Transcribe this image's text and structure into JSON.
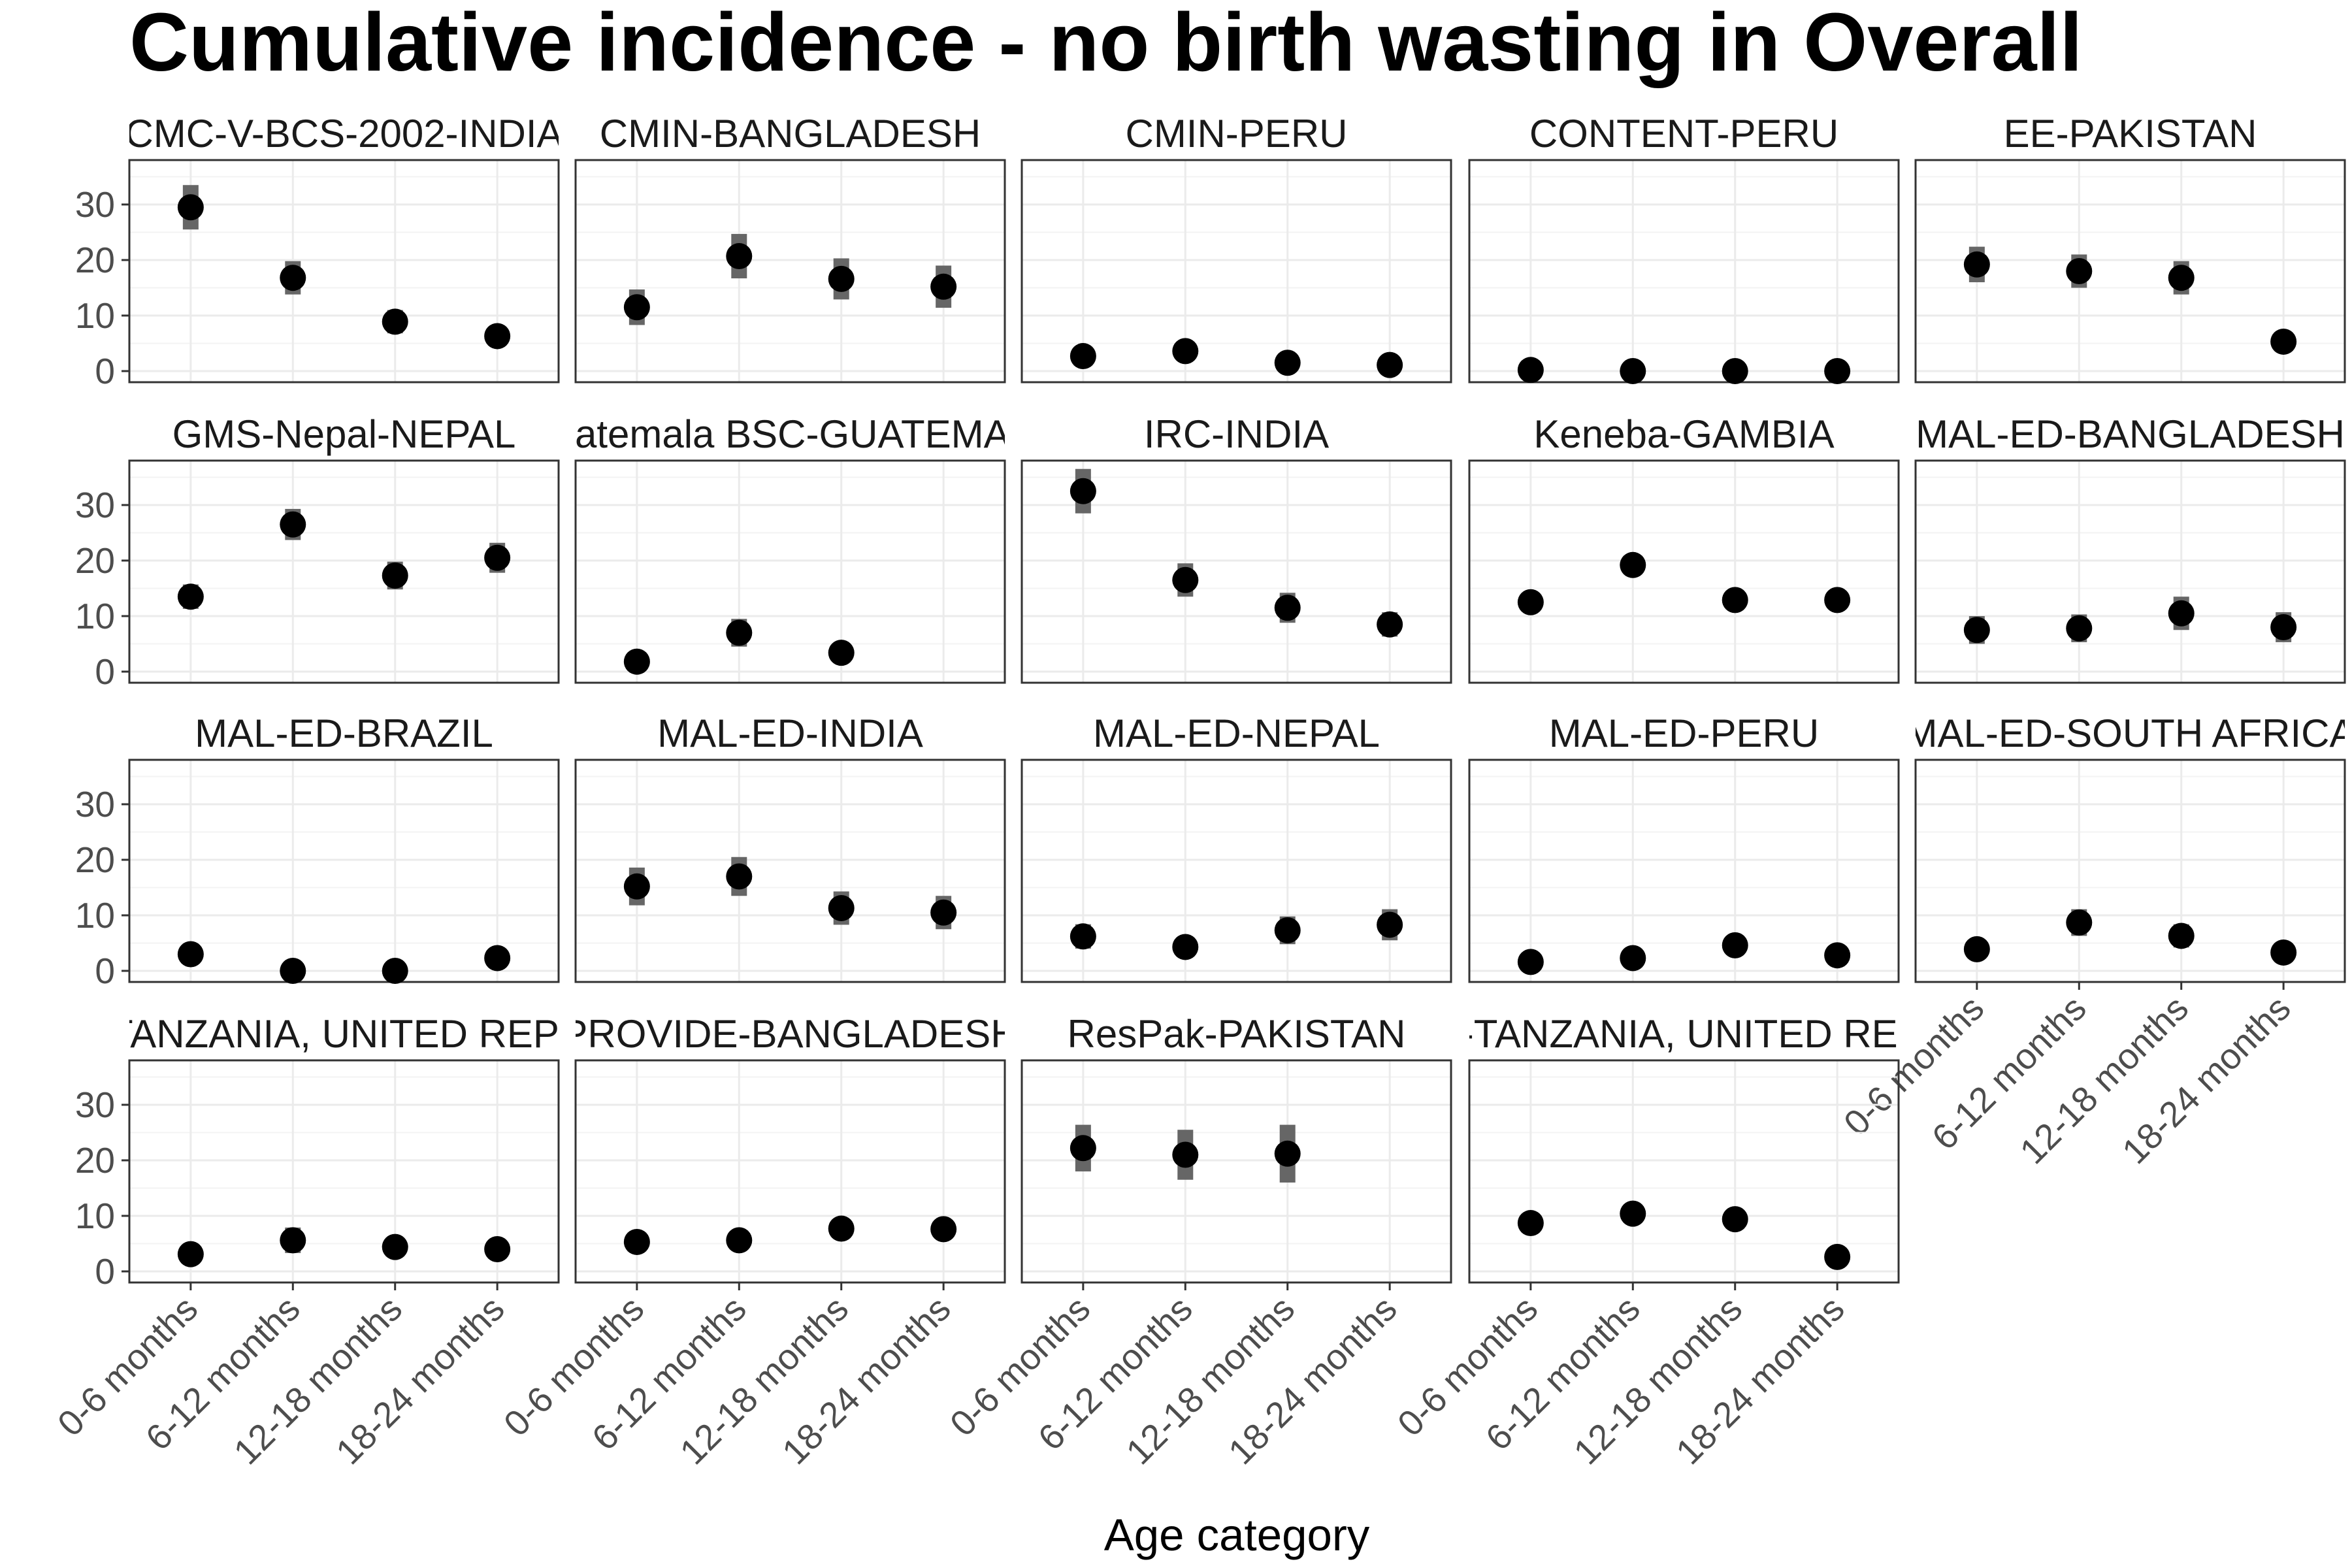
{
  "chart_data": {
    "type": "scatter",
    "title": "Cumulative incidence - no birth wasting in Overall",
    "xlabel": "Age category",
    "ylabel": "",
    "ylim": [
      -2,
      38
    ],
    "yticks": [
      "0",
      "10",
      "20",
      "30"
    ],
    "categories": [
      "0-6 months",
      "6-12 months",
      "12-18 months",
      "18-24 months"
    ],
    "grid": true,
    "facet_layout": {
      "rows": 4,
      "cols": 5
    },
    "colors": {
      "point": "#000000",
      "errorbar": "#666666",
      "grid": "#ebebeb",
      "panel_border": "#333333"
    },
    "panels": [
      {
        "label": "CMC-V-BCS-2002-INDIA",
        "values": [
          29.5,
          16.8,
          8.9,
          6.3
        ],
        "lower": [
          25.5,
          13.8,
          6.8,
          4.8
        ],
        "upper": [
          33.5,
          19.8,
          11.0,
          7.8
        ]
      },
      {
        "label": "CMIN-BANGLADESH",
        "values": [
          11.5,
          20.7,
          16.6,
          15.2
        ],
        "lower": [
          8.3,
          16.7,
          12.9,
          11.4
        ],
        "upper": [
          14.7,
          24.7,
          20.3,
          19.0
        ]
      },
      {
        "label": "CMIN-PERU",
        "values": [
          2.7,
          3.6,
          1.5,
          1.1
        ],
        "lower": [
          1.7,
          2.4,
          0.8,
          0.4
        ],
        "upper": [
          3.7,
          4.8,
          2.2,
          1.8
        ]
      },
      {
        "label": "CONTENT-PERU",
        "values": [
          0.2,
          0.0,
          0.0,
          0.0
        ],
        "lower": [
          0.0,
          0.0,
          0.0,
          0.0
        ],
        "upper": [
          1.2,
          0.5,
          0.5,
          0.5
        ]
      },
      {
        "label": "EE-PAKISTAN",
        "values": [
          19.2,
          18.0,
          16.8,
          5.3
        ],
        "lower": [
          16.0,
          15.0,
          13.8,
          4.0
        ],
        "upper": [
          22.4,
          21.0,
          19.8,
          6.6
        ]
      },
      {
        "label": "GMS-Nepal-NEPAL",
        "values": [
          13.5,
          26.5,
          17.3,
          20.5
        ],
        "lower": [
          11.3,
          23.7,
          14.8,
          17.8
        ],
        "upper": [
          15.7,
          29.3,
          19.8,
          23.2
        ]
      },
      {
        "label": "Guatemala BSC-GUATEMALA",
        "values": [
          1.8,
          7.0,
          3.4,
          null
        ],
        "lower": [
          1.0,
          4.5,
          1.9,
          null
        ],
        "upper": [
          2.6,
          9.5,
          4.9,
          null
        ]
      },
      {
        "label": "IRC-INDIA",
        "values": [
          32.5,
          16.5,
          11.5,
          8.5
        ],
        "lower": [
          28.5,
          13.5,
          8.8,
          6.3
        ],
        "upper": [
          36.5,
          19.5,
          14.2,
          10.7
        ]
      },
      {
        "label": "Keneba-GAMBIA",
        "values": [
          12.5,
          19.2,
          12.9,
          12.9
        ],
        "lower": [
          11.8,
          18.3,
          12.1,
          12.0
        ],
        "upper": [
          13.2,
          20.1,
          13.7,
          13.8
        ]
      },
      {
        "label": "MAL-ED-BANGLADESH",
        "values": [
          7.5,
          7.8,
          10.5,
          8.0
        ],
        "lower": [
          5.0,
          5.3,
          7.5,
          5.3
        ],
        "upper": [
          10.0,
          10.3,
          13.5,
          10.7
        ]
      },
      {
        "label": "MAL-ED-BRAZIL",
        "values": [
          3.0,
          0.0,
          0.0,
          2.3
        ],
        "lower": [
          1.5,
          0.0,
          0.0,
          1.0
        ],
        "upper": [
          4.5,
          0.8,
          0.8,
          3.6
        ]
      },
      {
        "label": "MAL-ED-INDIA",
        "values": [
          15.2,
          17.0,
          11.3,
          10.5
        ],
        "lower": [
          11.8,
          13.5,
          8.3,
          7.5
        ],
        "upper": [
          18.6,
          20.5,
          14.3,
          13.5
        ]
      },
      {
        "label": "MAL-ED-NEPAL",
        "values": [
          6.2,
          4.3,
          7.3,
          8.3
        ],
        "lower": [
          4.0,
          2.5,
          4.8,
          5.5
        ],
        "upper": [
          8.4,
          6.1,
          9.8,
          11.1
        ]
      },
      {
        "label": "MAL-ED-PERU",
        "values": [
          1.6,
          2.3,
          4.6,
          2.8
        ],
        "lower": [
          0.6,
          1.1,
          2.9,
          1.5
        ],
        "upper": [
          2.6,
          3.5,
          6.3,
          4.1
        ]
      },
      {
        "label": "MAL-ED-SOUTH AFRICA",
        "values": [
          3.9,
          8.7,
          6.3,
          3.3
        ],
        "lower": [
          2.5,
          6.3,
          4.2,
          2.0
        ],
        "upper": [
          5.3,
          11.1,
          8.4,
          4.6
        ]
      },
      {
        "label": "MAL-ED-TANZANIA, UNITED REPUBLIC OF",
        "values": [
          3.1,
          5.6,
          4.4,
          4.0
        ],
        "lower": [
          1.6,
          3.3,
          2.6,
          2.3
        ],
        "upper": [
          4.6,
          7.9,
          6.2,
          5.7
        ]
      },
      {
        "label": "PROVIDE-BANGLADESH",
        "values": [
          5.3,
          5.6,
          7.7,
          7.6
        ],
        "lower": [
          4.0,
          4.2,
          6.0,
          5.9
        ],
        "upper": [
          6.6,
          7.0,
          9.4,
          9.3
        ]
      },
      {
        "label": "ResPak-PAKISTAN",
        "values": [
          22.2,
          21.0,
          21.2,
          null
        ],
        "lower": [
          18.0,
          16.5,
          16.0,
          null
        ],
        "upper": [
          26.4,
          25.5,
          26.4,
          null
        ]
      },
      {
        "label": "ZVITAMBO-TANZANIA, UNITED REPUBLIC OF",
        "values": [
          8.7,
          10.4,
          9.4,
          2.6
        ],
        "lower": [
          8.0,
          9.6,
          8.6,
          2.1
        ],
        "upper": [
          9.4,
          11.2,
          10.2,
          3.1
        ]
      }
    ]
  }
}
